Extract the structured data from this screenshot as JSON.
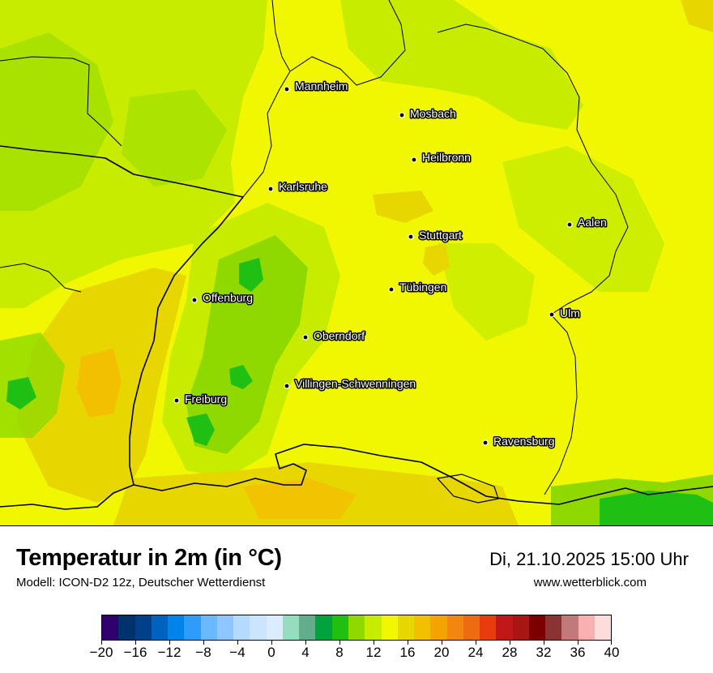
{
  "title": "Temperatur in 2m (in °C)",
  "subtitle": "Modell: ICON-D2 12z, Deutscher Wetterdienst",
  "datetime": "Di, 21.10.2025 15:00 Uhr",
  "site": "www.wetterblick.com",
  "cities": [
    {
      "name": "Mannheim"
    },
    {
      "name": "Mosbach"
    },
    {
      "name": "Heilbronn"
    },
    {
      "name": "Karlsruhe"
    },
    {
      "name": "Aalen"
    },
    {
      "name": "Stuttgart"
    },
    {
      "name": "Tübingen"
    },
    {
      "name": "Offenburg"
    },
    {
      "name": "Ulm"
    },
    {
      "name": "Oberndorf"
    },
    {
      "name": "Villingen-Schwenningen"
    },
    {
      "name": "Freiburg"
    },
    {
      "name": "Ravensburg"
    }
  ],
  "legend": {
    "colors": [
      "#30006e",
      "#00336e",
      "#003f8a",
      "#0062bf",
      "#0083eb",
      "#2e9cff",
      "#6ab9ff",
      "#8fc6ff",
      "#b5daff",
      "#cce5ff",
      "#dcecff",
      "#96dcbe",
      "#63ad8a",
      "#00a33d",
      "#1fbf14",
      "#8fd900",
      "#c8ec00",
      "#f0f700",
      "#e8d600",
      "#f2c000",
      "#f5a300",
      "#f28710",
      "#ee6b12",
      "#e83c0f",
      "#bf1818",
      "#a81515",
      "#7d0000",
      "#8a3333",
      "#c07a7a",
      "#fab0b0",
      "#ffdcdc"
    ],
    "ticks": [
      "−20",
      "−16",
      "−12",
      "−8",
      "−4",
      "0",
      "4",
      "8",
      "12",
      "16",
      "20",
      "24",
      "28",
      "32",
      "36",
      "40"
    ]
  }
}
